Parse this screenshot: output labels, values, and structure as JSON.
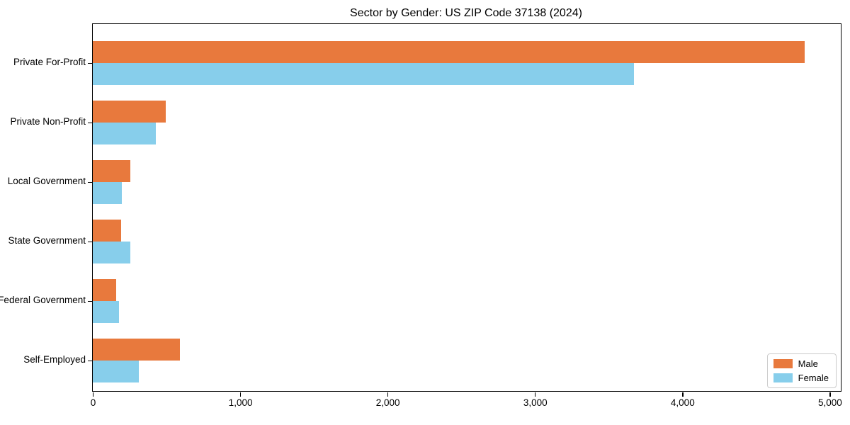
{
  "title": "Sector by Gender: US ZIP Code 37138 (2024)",
  "chart_data": {
    "type": "bar",
    "orientation": "horizontal",
    "title": "Sector by Gender: US ZIP Code 37138 (2024)",
    "xlabel": "",
    "ylabel": "",
    "categories": [
      "Private For-Profit",
      "Private Non-Profit",
      "Local Government",
      "State Government",
      "Federal Government",
      "Self-Employed"
    ],
    "series": [
      {
        "name": "Male",
        "color": "#E8793D",
        "values": [
          4830,
          494,
          256,
          192,
          160,
          590
        ]
      },
      {
        "name": "Female",
        "color": "#87CEEB",
        "values": [
          3670,
          429,
          197,
          253,
          179,
          314
        ]
      }
    ],
    "xlim": [
      0,
      5075
    ],
    "xticks": [
      {
        "value": 0,
        "label": "0"
      },
      {
        "value": 1000,
        "label": "1,000"
      },
      {
        "value": 2000,
        "label": "2,000"
      },
      {
        "value": 3000,
        "label": "3,000"
      },
      {
        "value": 4000,
        "label": "4,000"
      },
      {
        "value": 5000,
        "label": "5,000"
      }
    ],
    "grid": false,
    "legend_position": "lower right"
  }
}
